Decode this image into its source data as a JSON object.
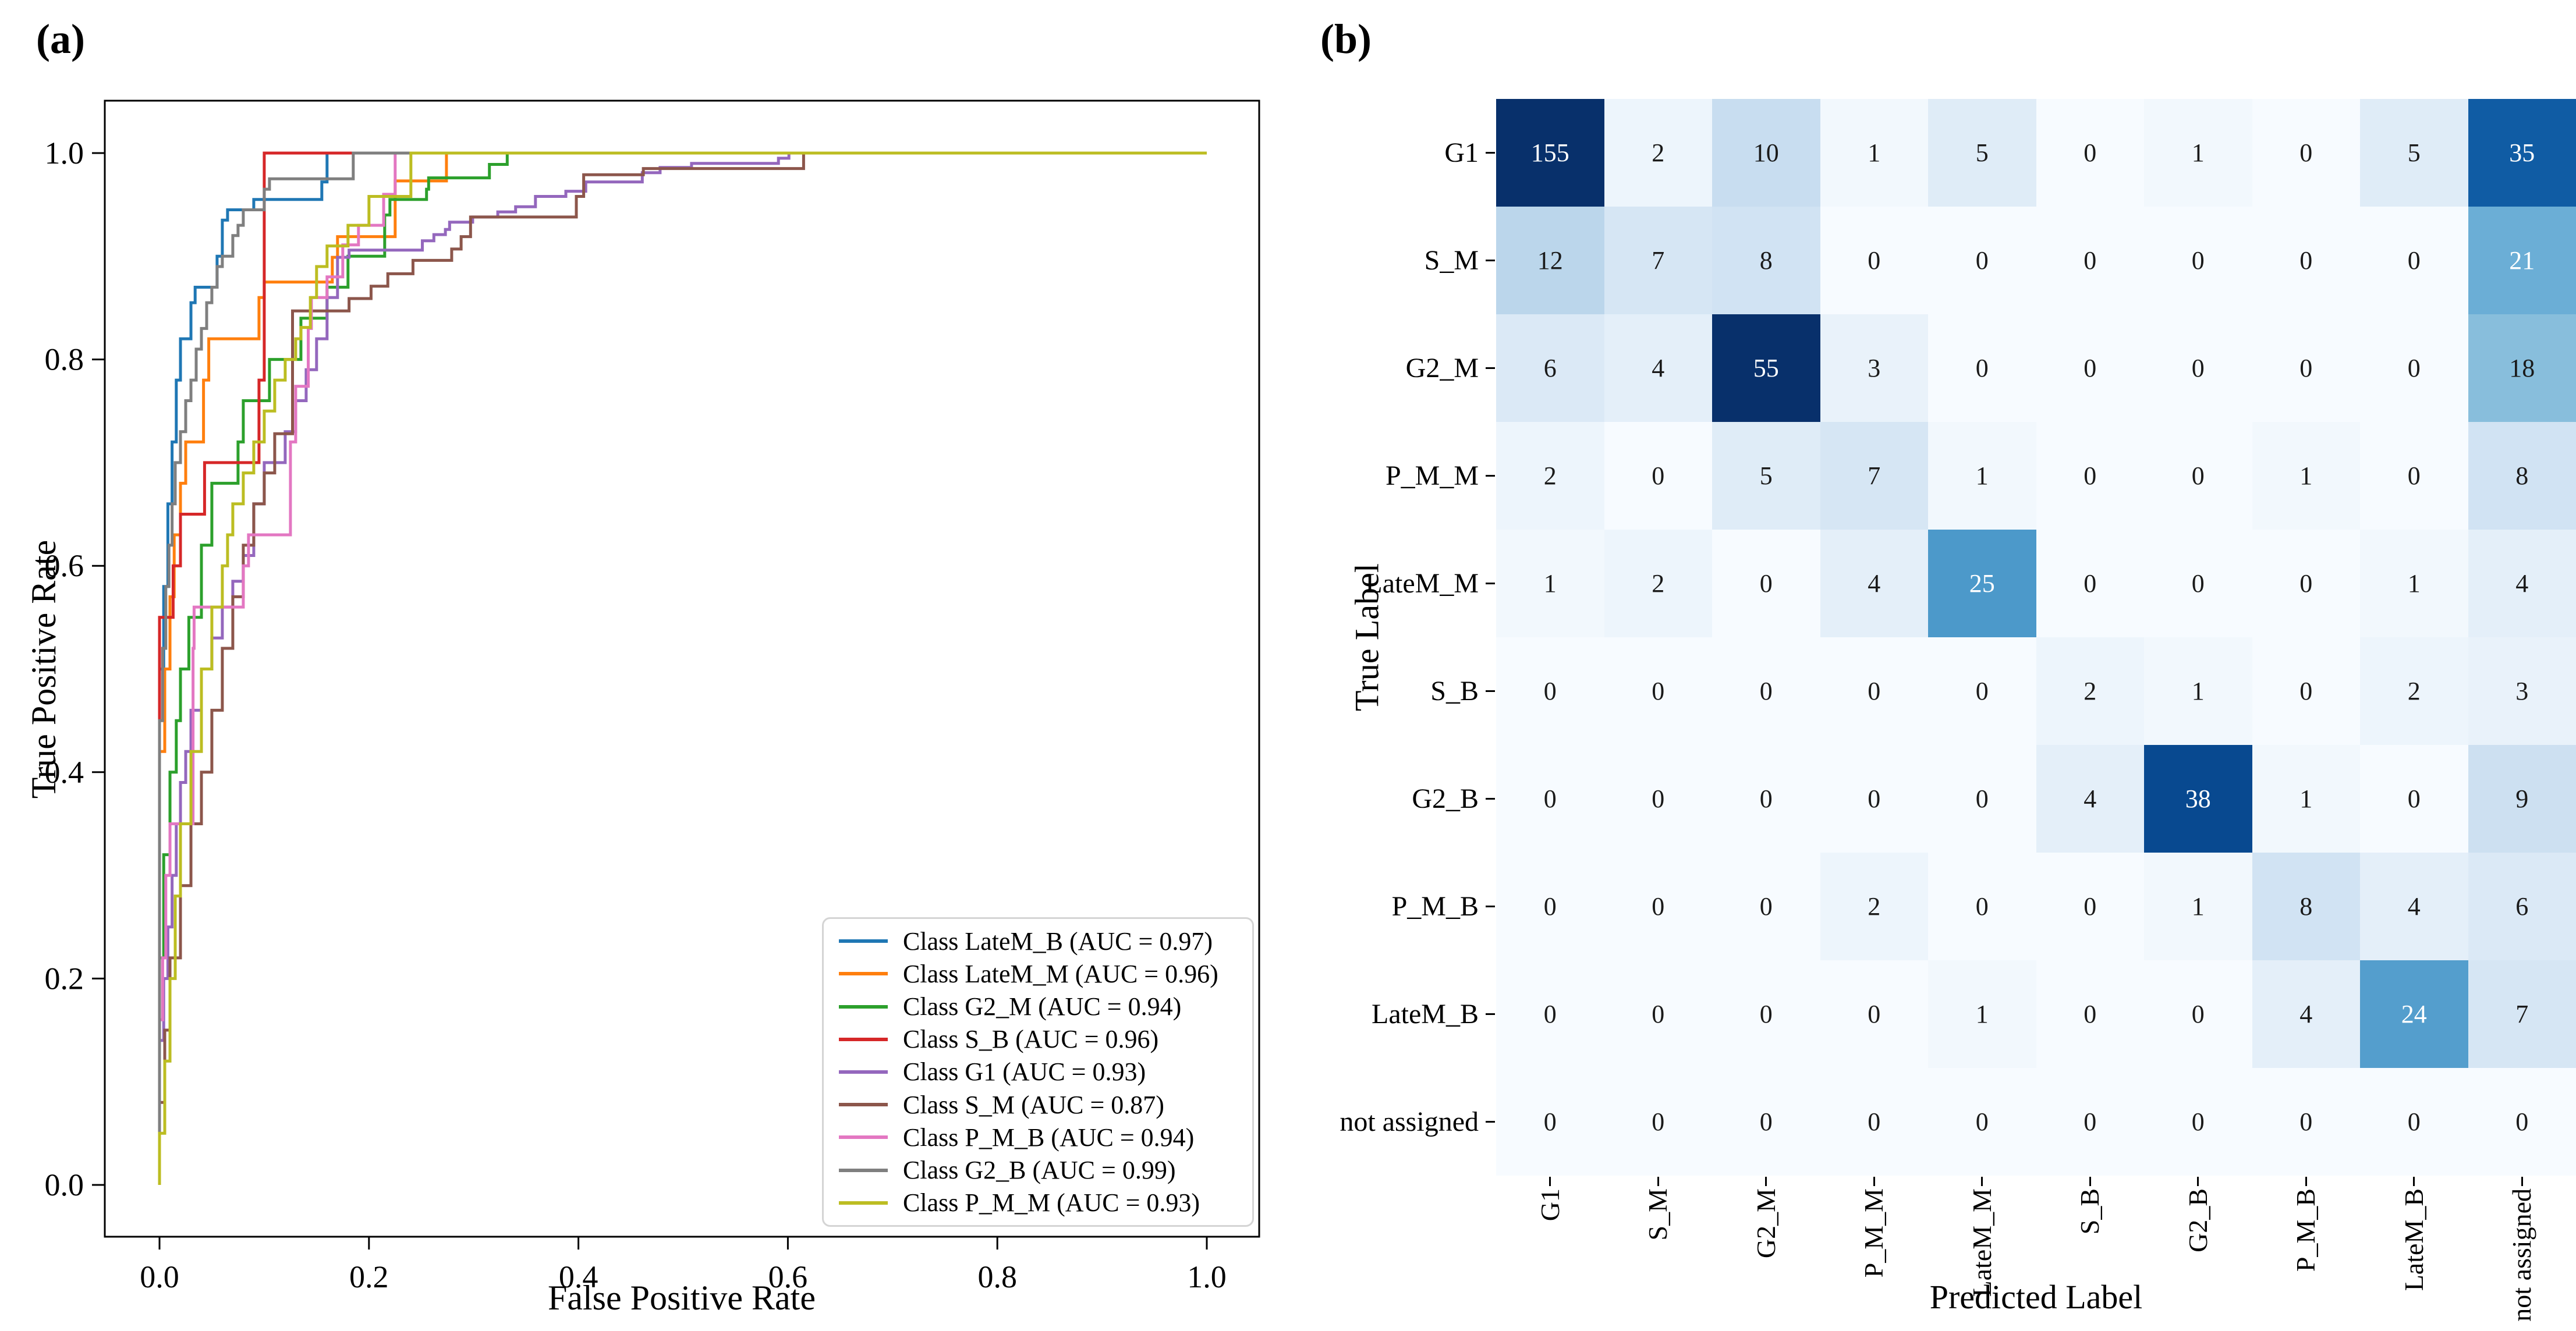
{
  "figure": {
    "panel_a_label": "(a)",
    "panel_b_label": "(b)"
  },
  "chart_data": [
    {
      "id": "roc",
      "type": "line",
      "title": "",
      "xlabel": "False Positive Rate",
      "ylabel": "True Positive Rate",
      "xlim": [
        -0.05,
        1.05
      ],
      "ylim": [
        -0.05,
        1.05
      ],
      "xticks": [
        0.0,
        0.2,
        0.4,
        0.6,
        0.8,
        1.0
      ],
      "yticks": [
        0.0,
        0.2,
        0.4,
        0.6,
        0.8,
        1.0
      ],
      "grid": false,
      "legend_position": "lower right",
      "series": [
        {
          "name": "Class LateM_B (AUC = 0.97)",
          "class": "LateM_B",
          "auc": 0.97,
          "color": "#1f77b4",
          "points": [
            [
              0,
              0
            ],
            [
              0,
              0.37
            ],
            [
              0.004,
              0.5
            ],
            [
              0.008,
              0.58
            ],
            [
              0.012,
              0.66
            ],
            [
              0.016,
              0.72
            ],
            [
              0.02,
              0.78
            ],
            [
              0.03,
              0.82
            ],
            [
              0.034,
              0.855
            ],
            [
              0.055,
              0.87
            ],
            [
              0.06,
              0.9
            ],
            [
              0.065,
              0.935
            ],
            [
              0.09,
              0.945
            ],
            [
              0.155,
              0.955
            ],
            [
              0.16,
              0.972
            ],
            [
              0.31,
              1.0
            ],
            [
              1,
              1
            ]
          ]
        },
        {
          "name": "Class LateM_M (AUC = 0.96)",
          "class": "LateM_M",
          "auc": 0.96,
          "color": "#ff7f0e",
          "points": [
            [
              0,
              0
            ],
            [
              0,
              0.3
            ],
            [
              0.005,
              0.42
            ],
            [
              0.01,
              0.5
            ],
            [
              0.014,
              0.57
            ],
            [
              0.02,
              0.63
            ],
            [
              0.025,
              0.68
            ],
            [
              0.042,
              0.72
            ],
            [
              0.047,
              0.78
            ],
            [
              0.095,
              0.82
            ],
            [
              0.1,
              0.86
            ],
            [
              0.165,
              0.875
            ],
            [
              0.17,
              0.899
            ],
            [
              0.225,
              0.919
            ],
            [
              0.274,
              0.973
            ],
            [
              0.419,
              1.0
            ],
            [
              1,
              1
            ]
          ]
        },
        {
          "name": "Class G2_M (AUC = 0.94)",
          "class": "G2_M",
          "auc": 0.94,
          "color": "#2ca02c",
          "points": [
            [
              0,
              0
            ],
            [
              0,
              0.05
            ],
            [
              0.004,
              0.22
            ],
            [
              0.01,
              0.32
            ],
            [
              0.016,
              0.4
            ],
            [
              0.02,
              0.45
            ],
            [
              0.028,
              0.5
            ],
            [
              0.04,
              0.55
            ],
            [
              0.05,
              0.62
            ],
            [
              0.075,
              0.68
            ],
            [
              0.08,
              0.72
            ],
            [
              0.105,
              0.76
            ],
            [
              0.135,
              0.8
            ],
            [
              0.16,
              0.84
            ],
            [
              0.18,
              0.87
            ],
            [
              0.215,
              0.9
            ],
            [
              0.22,
              0.94
            ],
            [
              0.255,
              0.955
            ],
            [
              0.257,
              0.965
            ],
            [
              0.315,
              0.976
            ],
            [
              0.332,
              0.989
            ],
            [
              0.48,
              1.0
            ],
            [
              1,
              1
            ]
          ]
        },
        {
          "name": "Class S_B (AUC = 0.96)",
          "class": "S_B",
          "auc": 0.96,
          "color": "#d62728",
          "points": [
            [
              0,
              0
            ],
            [
              0,
              0.37
            ],
            [
              0.013,
              0.55
            ],
            [
              0.02,
              0.6
            ],
            [
              0.043,
              0.65
            ],
            [
              0.095,
              0.7
            ],
            [
              0.1,
              0.78
            ],
            [
              0.185,
              1.0
            ],
            [
              1,
              1
            ]
          ]
        },
        {
          "name": "Class G1 (AUC = 0.93)",
          "class": "G1",
          "auc": 0.93,
          "color": "#9467bd",
          "points": [
            [
              0,
              0
            ],
            [
              0,
              0.08
            ],
            [
              0.004,
              0.14
            ],
            [
              0.008,
              0.2
            ],
            [
              0.012,
              0.25
            ],
            [
              0.016,
              0.3
            ],
            [
              0.02,
              0.35
            ],
            [
              0.025,
              0.39
            ],
            [
              0.03,
              0.42
            ],
            [
              0.04,
              0.46
            ],
            [
              0.05,
              0.5
            ],
            [
              0.06,
              0.53
            ],
            [
              0.07,
              0.56
            ],
            [
              0.08,
              0.585
            ],
            [
              0.09,
              0.61
            ],
            [
              0.1,
              0.66
            ],
            [
              0.12,
              0.7
            ],
            [
              0.13,
              0.73
            ],
            [
              0.14,
              0.76
            ],
            [
              0.15,
              0.79
            ],
            [
              0.16,
              0.82
            ],
            [
              0.17,
              0.86
            ],
            [
              0.181,
              0.899
            ],
            [
              0.251,
              0.906
            ],
            [
              0.262,
              0.915
            ],
            [
              0.273,
              0.921
            ],
            [
              0.277,
              0.926
            ],
            [
              0.299,
              0.933
            ],
            [
              0.323,
              0.938
            ],
            [
              0.34,
              0.943
            ],
            [
              0.359,
              0.948
            ],
            [
              0.388,
              0.958
            ],
            [
              0.407,
              0.963
            ],
            [
              0.461,
              0.972
            ],
            [
              0.478,
              0.981
            ],
            [
              0.508,
              0.986
            ],
            [
              0.591,
              0.99
            ],
            [
              0.601,
              0.995
            ],
            [
              0.626,
              1.0
            ],
            [
              1,
              1
            ]
          ]
        },
        {
          "name": "Class S_M (AUC = 0.87)",
          "class": "S_M",
          "auc": 0.87,
          "color": "#8c564b",
          "points": [
            [
              0,
              0
            ],
            [
              0,
              0.02
            ],
            [
              0.005,
              0.08
            ],
            [
              0.01,
              0.15
            ],
            [
              0.02,
              0.22
            ],
            [
              0.03,
              0.29
            ],
            [
              0.04,
              0.35
            ],
            [
              0.05,
              0.4
            ],
            [
              0.06,
              0.46
            ],
            [
              0.07,
              0.52
            ],
            [
              0.08,
              0.57
            ],
            [
              0.09,
              0.62
            ],
            [
              0.1,
              0.66
            ],
            [
              0.11,
              0.69
            ],
            [
              0.127,
              0.728
            ],
            [
              0.181,
              0.847
            ],
            [
              0.202,
              0.859
            ],
            [
              0.218,
              0.871
            ],
            [
              0.242,
              0.883
            ],
            [
              0.279,
              0.896
            ],
            [
              0.288,
              0.907
            ],
            [
              0.297,
              0.919
            ],
            [
              0.398,
              0.938
            ],
            [
              0.405,
              0.958
            ],
            [
              0.462,
              0.979
            ],
            [
              0.615,
              0.985
            ],
            [
              0.62,
              1.0
            ],
            [
              1,
              1
            ]
          ]
        },
        {
          "name": "Class P_M_B (AUC = 0.94)",
          "class": "P_M_B",
          "auc": 0.94,
          "color": "#e377c2",
          "points": [
            [
              0,
              0
            ],
            [
              0,
              0.1
            ],
            [
              0.003,
              0.16
            ],
            [
              0.006,
              0.22
            ],
            [
              0.01,
              0.3
            ],
            [
              0.032,
              0.35
            ],
            [
              0.033,
              0.52
            ],
            [
              0.08,
              0.56
            ],
            [
              0.085,
              0.6
            ],
            [
              0.125,
              0.63
            ],
            [
              0.13,
              0.72
            ],
            [
              0.142,
              0.774
            ],
            [
              0.145,
              0.83
            ],
            [
              0.16,
              0.86
            ],
            [
              0.175,
              0.88
            ],
            [
              0.19,
              0.911
            ],
            [
              0.214,
              0.93
            ],
            [
              0.225,
              0.96
            ],
            [
              0.247,
              1.0
            ],
            [
              1,
              1
            ]
          ]
        },
        {
          "name": "Class G2_B (AUC = 0.99)",
          "class": "G2_B",
          "auc": 0.99,
          "color": "#7f7f7f",
          "points": [
            [
              0,
              0
            ],
            [
              0,
              0.36
            ],
            [
              0.003,
              0.45
            ],
            [
              0.006,
              0.52
            ],
            [
              0.009,
              0.58
            ],
            [
              0.012,
              0.62
            ],
            [
              0.015,
              0.66
            ],
            [
              0.02,
              0.7
            ],
            [
              0.025,
              0.73
            ],
            [
              0.03,
              0.76
            ],
            [
              0.035,
              0.78
            ],
            [
              0.04,
              0.81
            ],
            [
              0.045,
              0.83
            ],
            [
              0.05,
              0.855
            ],
            [
              0.055,
              0.87
            ],
            [
              0.06,
              0.89
            ],
            [
              0.07,
              0.9
            ],
            [
              0.075,
              0.92
            ],
            [
              0.08,
              0.93
            ],
            [
              0.1,
              0.945
            ],
            [
              0.105,
              0.965
            ],
            [
              0.185,
              0.975
            ],
            [
              0.2,
              1.0
            ],
            [
              1,
              1
            ]
          ]
        },
        {
          "name": "Class P_M_M (AUC = 0.93)",
          "class": "P_M_M",
          "auc": 0.93,
          "color": "#bcbd22",
          "points": [
            [
              0,
              0
            ],
            [
              0,
              0.01
            ],
            [
              0.005,
              0.05
            ],
            [
              0.01,
              0.12
            ],
            [
              0.015,
              0.2
            ],
            [
              0.02,
              0.28
            ],
            [
              0.03,
              0.35
            ],
            [
              0.04,
              0.42
            ],
            [
              0.05,
              0.5
            ],
            [
              0.06,
              0.56
            ],
            [
              0.065,
              0.6
            ],
            [
              0.07,
              0.63
            ],
            [
              0.08,
              0.66
            ],
            [
              0.09,
              0.69
            ],
            [
              0.1,
              0.72
            ],
            [
              0.11,
              0.75
            ],
            [
              0.12,
              0.78
            ],
            [
              0.13,
              0.8
            ],
            [
              0.135,
              0.82
            ],
            [
              0.144,
              0.831
            ],
            [
              0.15,
              0.86
            ],
            [
              0.16,
              0.89
            ],
            [
              0.18,
              0.91
            ],
            [
              0.2,
              0.93
            ],
            [
              0.24,
              0.958
            ],
            [
              0.306,
              1.0
            ],
            [
              1,
              1
            ]
          ]
        }
      ]
    },
    {
      "id": "confusion_matrix",
      "type": "heatmap",
      "xlabel": "Predicted Label",
      "ylabel": "True Label",
      "colormap": "Blues",
      "color_scale_max": 42,
      "labels": [
        "G1",
        "S_M",
        "G2_M",
        "P_M_M",
        "LateM_M",
        "S_B",
        "G2_B",
        "P_M_B",
        "LateM_B",
        "not assigned"
      ],
      "values": [
        [
          155,
          2,
          10,
          1,
          5,
          0,
          1,
          0,
          5,
          35
        ],
        [
          12,
          7,
          8,
          0,
          0,
          0,
          0,
          0,
          0,
          21
        ],
        [
          6,
          4,
          55,
          3,
          0,
          0,
          0,
          0,
          0,
          18
        ],
        [
          2,
          0,
          5,
          7,
          1,
          0,
          0,
          1,
          0,
          8
        ],
        [
          1,
          2,
          0,
          4,
          25,
          0,
          0,
          0,
          1,
          4
        ],
        [
          0,
          0,
          0,
          0,
          0,
          2,
          1,
          0,
          2,
          3
        ],
        [
          0,
          0,
          0,
          0,
          0,
          4,
          38,
          1,
          0,
          9
        ],
        [
          0,
          0,
          0,
          2,
          0,
          0,
          1,
          8,
          4,
          6
        ],
        [
          0,
          0,
          0,
          0,
          1,
          0,
          0,
          4,
          24,
          7
        ],
        [
          0,
          0,
          0,
          0,
          0,
          0,
          0,
          0,
          0,
          0
        ]
      ]
    }
  ]
}
